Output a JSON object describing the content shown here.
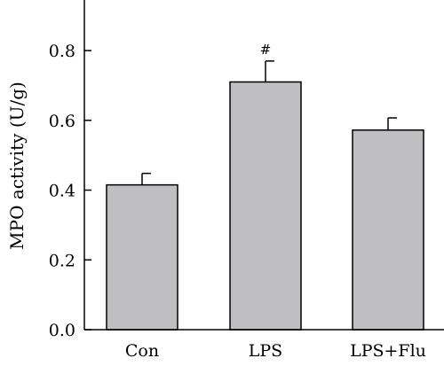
{
  "chart_data": {
    "type": "bar",
    "ylabel": "MPO activity (U/g)",
    "categories": [
      "Con",
      "LPS",
      "LPS+Flu"
    ],
    "values": [
      0.415,
      0.71,
      0.572
    ],
    "errors": [
      0.033,
      0.06,
      0.035
    ],
    "annotations": [
      "",
      "#",
      ""
    ],
    "ylim": [
      0.0,
      0.95
    ],
    "yticks": [
      "0.0",
      "0.2",
      "0.4",
      "0.6",
      "0.8"
    ],
    "grid": false,
    "bar_color": "#bfbfc2",
    "bar_edge_color": "#000000"
  }
}
